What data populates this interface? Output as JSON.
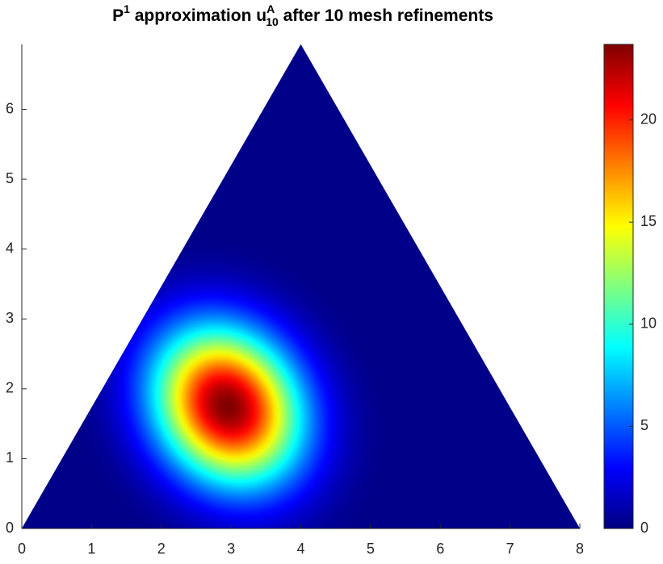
{
  "chart_data": {
    "type": "heatmap",
    "title_parts": [
      "P",
      "1",
      " approximation u",
      "A",
      "10",
      " after 10 mesh refinements"
    ],
    "triangle": {
      "x": [
        0,
        8,
        4
      ],
      "y": [
        0,
        0,
        6.93
      ]
    },
    "peak": {
      "x": 2.95,
      "y": 1.75,
      "value": 23.7
    },
    "xlim": [
      0,
      8
    ],
    "xticks": [
      0,
      1,
      2,
      3,
      4,
      5,
      6,
      7,
      8
    ],
    "ylim": [
      0,
      6.93
    ],
    "yticks": [
      0,
      1,
      2,
      3,
      4,
      5,
      6
    ],
    "clim": [
      0,
      23.7
    ],
    "cticks": [
      0,
      5,
      10,
      15,
      20
    ],
    "colormap": "jet"
  }
}
